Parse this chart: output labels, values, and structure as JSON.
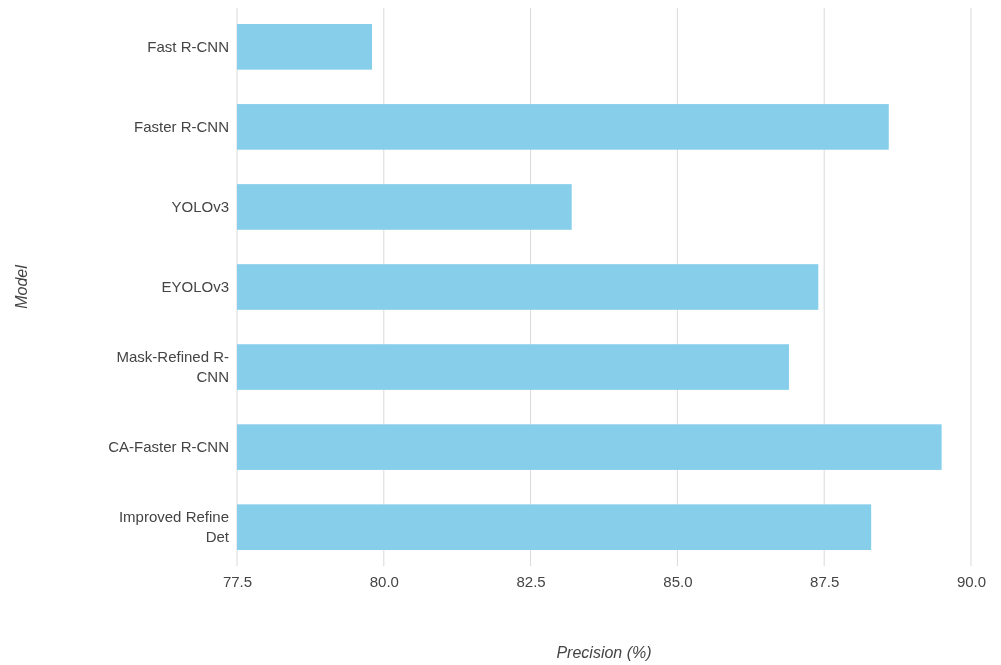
{
  "chart_data": {
    "type": "bar",
    "orientation": "horizontal",
    "xlabel": "Precision (%)",
    "ylabel": "Model",
    "categories": [
      "Fast R-CNN",
      "Faster R-CNN",
      "YOLOv3",
      "EYOLOv3",
      "Mask-Refined R-CNN",
      "CA-Faster R-CNN",
      "Improved Refine Det"
    ],
    "values": [
      79.8,
      88.6,
      83.2,
      87.4,
      86.9,
      89.5,
      88.3
    ],
    "color": "#87ceeb",
    "xlim": [
      77.5,
      90
    ],
    "xticks": [
      {
        "value": 77.5,
        "label": "77.5"
      },
      {
        "value": 80,
        "label": "80.0"
      },
      {
        "value": 82.5,
        "label": "82.5"
      },
      {
        "value": 85,
        "label": "85.0"
      },
      {
        "value": 87.5,
        "label": "87.5"
      },
      {
        "value": 90,
        "label": "90.0"
      }
    ],
    "grid": "x"
  }
}
